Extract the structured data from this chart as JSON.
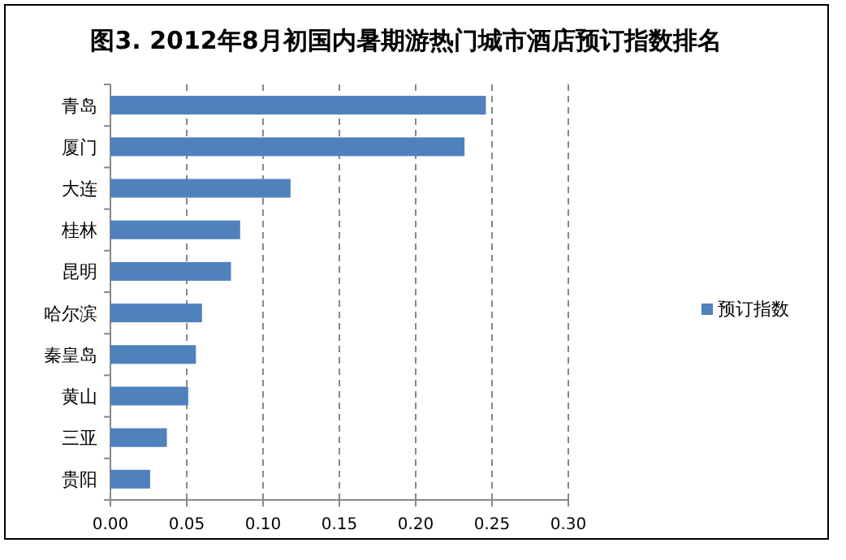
{
  "chart_data": {
    "type": "bar",
    "orientation": "horizontal",
    "title": "图3. 2012年8月初国内暑期游热门城市酒店预订指数排名",
    "categories": [
      "青岛",
      "厦门",
      "大连",
      "桂林",
      "昆明",
      "哈尔滨",
      "秦皇岛",
      "黄山",
      "三亚",
      "贵阳"
    ],
    "series": [
      {
        "name": "预订指数",
        "color": "#4f81bd",
        "values": [
          0.246,
          0.232,
          0.118,
          0.085,
          0.079,
          0.06,
          0.056,
          0.051,
          0.037,
          0.026
        ]
      }
    ],
    "xlim": [
      0,
      0.3
    ],
    "xticks": [
      {
        "value": 0,
        "label": "0.00"
      },
      {
        "value": 0.05,
        "label": "0.05"
      },
      {
        "value": 0.1,
        "label": "0.10"
      },
      {
        "value": 0.15,
        "label": "0.15"
      },
      {
        "value": 0.2,
        "label": "0.20"
      },
      {
        "value": 0.25,
        "label": "0.25"
      },
      {
        "value": 0.3,
        "label": "0.30"
      }
    ],
    "grid": "x",
    "legend": "right"
  }
}
